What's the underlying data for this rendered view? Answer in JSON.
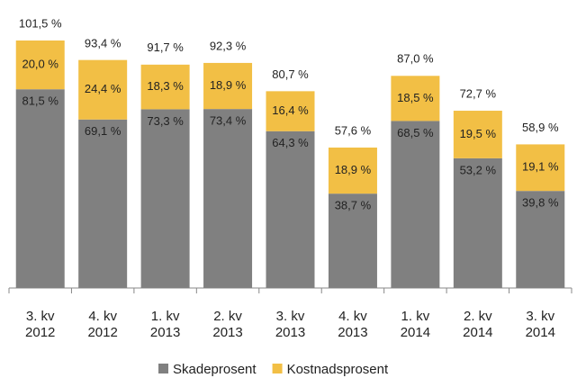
{
  "chart_data": {
    "type": "stacked_bar",
    "categories": [
      "3. kv\n2012",
      "4. kv\n2012",
      "1. kv\n2013",
      "2. kv\n2013",
      "3. kv\n2013",
      "4. kv\n2013",
      "1. kv\n2014",
      "2. kv\n2014",
      "3. kv\n2014"
    ],
    "series": [
      {
        "name": "Skadeprosent",
        "color": "#808080",
        "values": [
          81.5,
          69.1,
          73.3,
          73.4,
          64.3,
          38.7,
          68.5,
          53.2,
          39.8
        ],
        "value_labels": [
          "81,5 %",
          "69,1 %",
          "73,3 %",
          "73,4 %",
          "64,3 %",
          "38,7 %",
          "68,5 %",
          "53,2 %",
          "39,8 %"
        ]
      },
      {
        "name": "Kostnadsprosent",
        "color": "#f2bf45",
        "values": [
          20.0,
          24.4,
          18.3,
          18.9,
          16.4,
          18.9,
          18.5,
          19.5,
          19.1
        ],
        "value_labels": [
          "20,0 %",
          "24,4 %",
          "18,3 %",
          "18,9 %",
          "16,4 %",
          "18,9 %",
          "18,5 %",
          "19,5 %",
          "19,1 %"
        ]
      }
    ],
    "totals": {
      "values": [
        101.5,
        93.4,
        91.7,
        92.3,
        80.7,
        57.6,
        87.0,
        72.7,
        58.9
      ],
      "value_labels": [
        "101,5 %",
        "93,4 %",
        "91,7 %",
        "92,3 %",
        "80,7 %",
        "57,6 %",
        "87,0 %",
        "72,7 %",
        "58,9 %"
      ]
    },
    "legend": "bottom"
  }
}
